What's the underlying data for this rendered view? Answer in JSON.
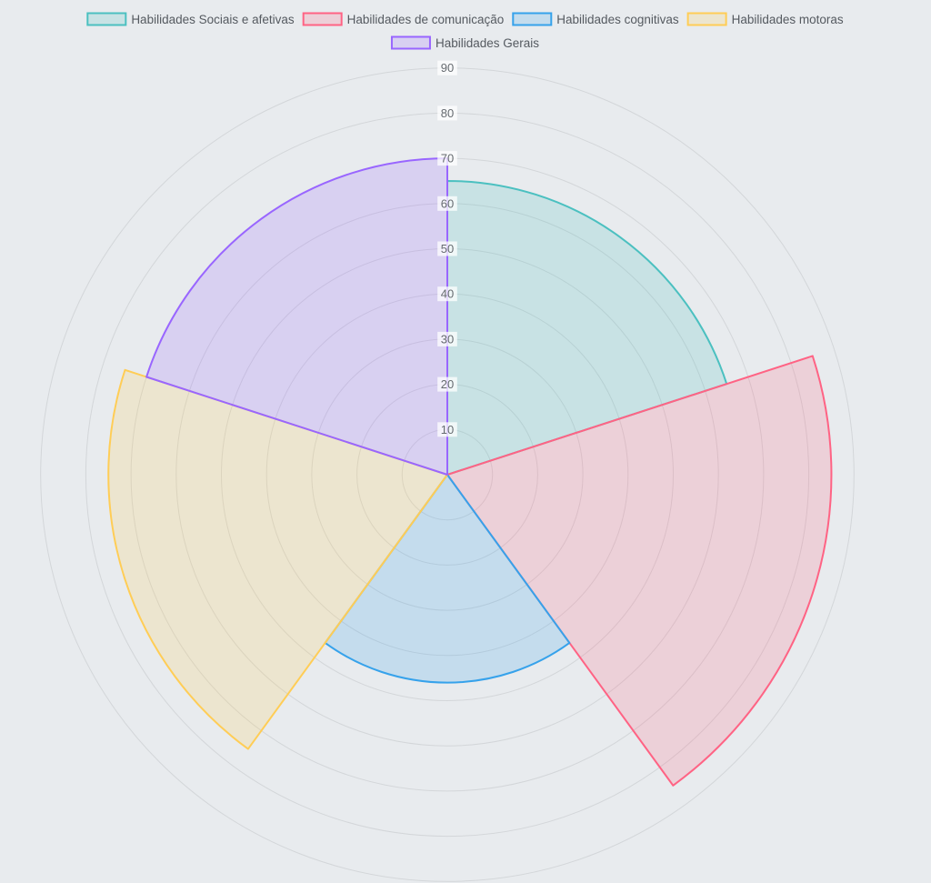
{
  "chart_data": {
    "type": "polarArea",
    "title": "",
    "categories": [
      "Habilidades Sociais e afetivas",
      "Habilidades de comunicação",
      "Habilidades cognitivas",
      "Habilidades motoras",
      "Habilidades Gerais"
    ],
    "values": [
      65,
      85,
      46,
      75,
      70
    ],
    "colors": [
      "#4bc0c0",
      "#ff6384",
      "#36a2eb",
      "#ffcd56",
      "#9966ff"
    ],
    "r_ticks": [
      10,
      20,
      30,
      40,
      50,
      60,
      70,
      80,
      90
    ],
    "r_max": 90,
    "grid": true,
    "legend_position": "top"
  }
}
